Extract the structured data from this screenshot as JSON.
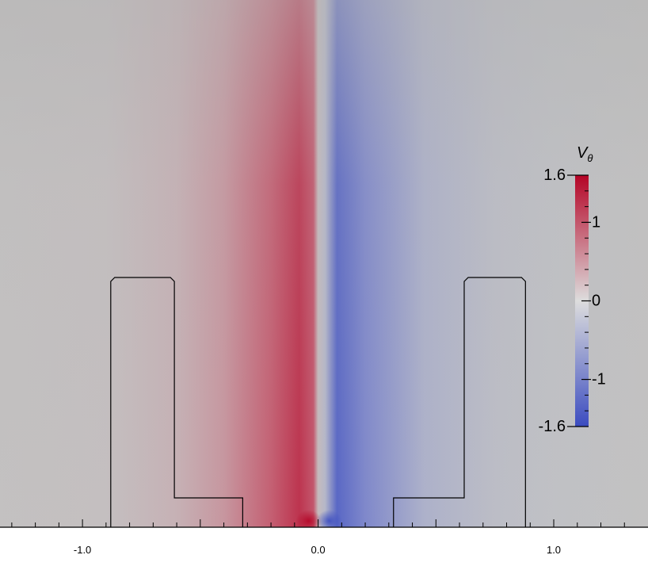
{
  "chart_data": {
    "type": "heatmap",
    "title": "",
    "xlabel": "",
    "ylabel": "",
    "field": "azimuthal velocity",
    "x_range": [
      -1.35,
      1.4
    ],
    "x_ticks": [
      {
        "value": -1.0,
        "label": "-1.0"
      },
      {
        "value": 0.0,
        "label": "0.0"
      },
      {
        "value": 1.0,
        "label": "1.0"
      }
    ],
    "x_minor_step": 0.1,
    "colorbar": {
      "title": "V",
      "title_subscript": "θ",
      "range": [
        -1.6,
        1.6
      ],
      "ticks": [
        {
          "value": 1.6,
          "label": "1.6"
        },
        {
          "value": 1,
          "label": "1"
        },
        {
          "value": 0,
          "label": "0"
        },
        {
          "value": -1,
          "label": "-1"
        },
        {
          "value": -1.6,
          "label": "-1.6"
        }
      ],
      "colormap": "cool-to-warm",
      "colors": {
        "low": "#3b4cc0",
        "mid": "#dddddd",
        "high": "#b40426"
      },
      "placement": "right"
    },
    "field_bands": [
      {
        "x": -1.35,
        "value": 0.05
      },
      {
        "x": -0.9,
        "value": 0.12
      },
      {
        "x": -0.6,
        "value": 0.35
      },
      {
        "x": -0.4,
        "value": 0.6
      },
      {
        "x": -0.2,
        "value": 0.95
      },
      {
        "x": -0.08,
        "value": 1.25
      },
      {
        "x": -0.02,
        "value": 1.0
      },
      {
        "x": 0.0,
        "value": 0.2
      },
      {
        "x": 0.03,
        "value": -0.4
      },
      {
        "x": 0.08,
        "value": -1.3
      },
      {
        "x": 0.2,
        "value": -0.95
      },
      {
        "x": 0.45,
        "value": -0.5
      },
      {
        "x": 0.75,
        "value": -0.25
      },
      {
        "x": 1.0,
        "value": -0.12
      },
      {
        "x": 1.4,
        "value": 0.02
      }
    ],
    "background_color": "#b4b4b4",
    "geometry": {
      "note": "blade outlines in data x-units",
      "left_blade": {
        "outer": -0.88,
        "inner": -0.61
      },
      "left_step": {
        "from": -0.61,
        "to": -0.32
      },
      "right_blade": {
        "outer": 0.88,
        "inner": 0.62
      },
      "right_step": {
        "from": 0.32,
        "to": 0.62
      }
    }
  }
}
